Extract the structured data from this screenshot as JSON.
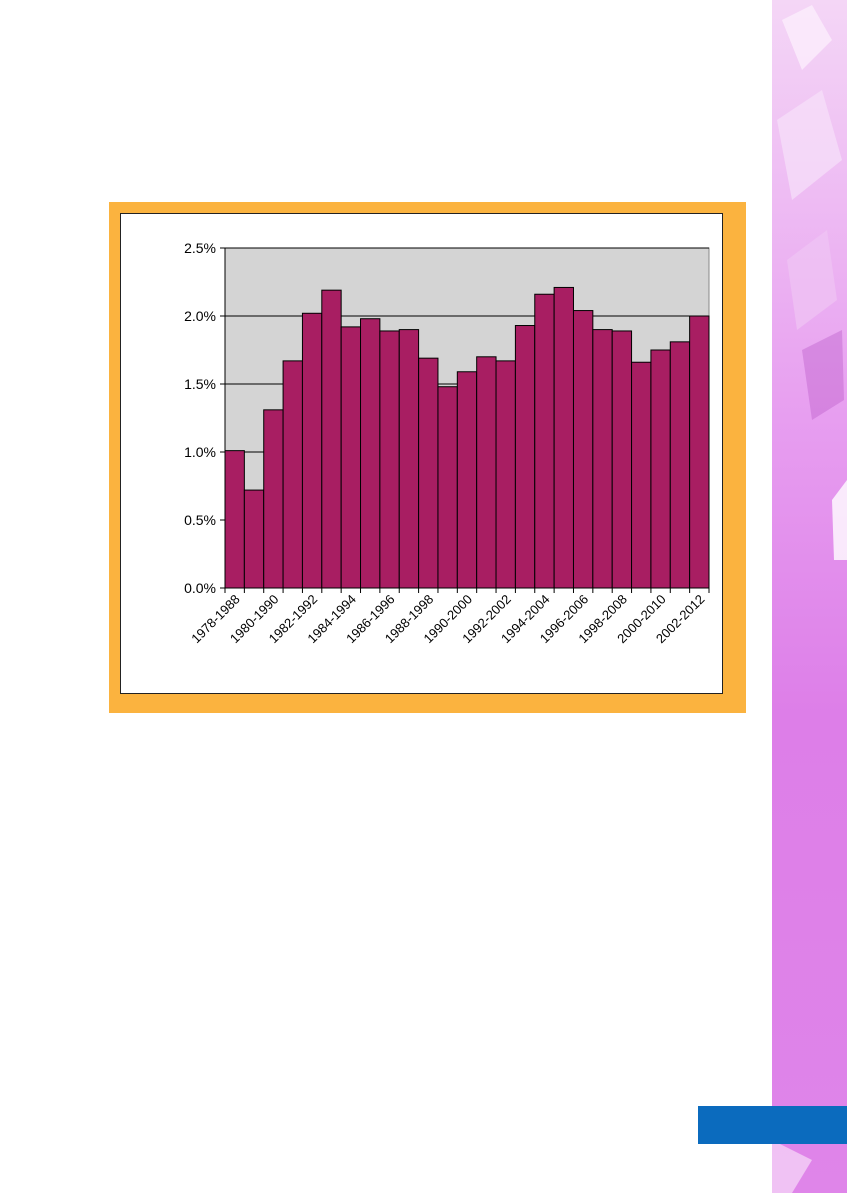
{
  "colors": {
    "frame": "#FBB33F",
    "bar_fill": "#A81E62",
    "plot_bg": "#D4D4D4",
    "side_pink": "#DE7FE8",
    "blue_tab": "#0B6BBE"
  },
  "chart_data": {
    "type": "bar",
    "title": "",
    "xlabel": "",
    "ylabel": "",
    "ylim": [
      0,
      2.5
    ],
    "y_ticks": [
      "0.0%",
      "0.5%",
      "1.0%",
      "1.5%",
      "2.0%",
      "2.5%"
    ],
    "grid": "horizontal",
    "x_tick_labels": [
      "1978-1988",
      "1980-1990",
      "1982-1992",
      "1984-1994",
      "1986-1996",
      "1988-1998",
      "1990-2000",
      "1992-2002",
      "1994-2004",
      "1996-2006",
      "1998-2008",
      "2000-2010",
      "2002-2012"
    ],
    "values": [
      1.01,
      0.72,
      1.31,
      1.67,
      2.02,
      2.19,
      1.92,
      1.98,
      1.89,
      1.9,
      1.69,
      1.48,
      1.59,
      1.7,
      1.67,
      1.93,
      2.16,
      2.21,
      2.04,
      1.9,
      1.89,
      1.66,
      1.75,
      1.81,
      2.0
    ]
  }
}
